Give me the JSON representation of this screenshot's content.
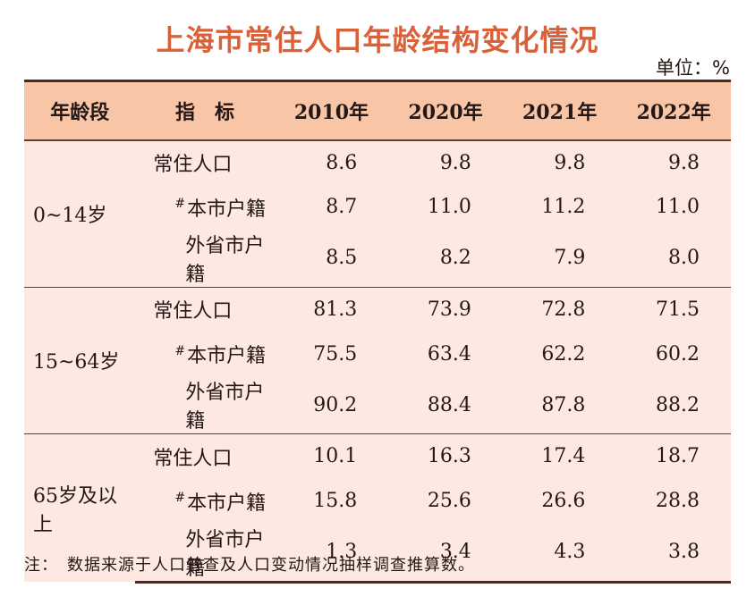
{
  "title": "上海市常住人口年龄结构变化情况",
  "unit": "单位：%",
  "headers": [
    "年龄段",
    "指　标",
    "2010年",
    "2020年",
    "2021年",
    "2022年"
  ],
  "groups": [
    {
      "age": "0~14岁",
      "rows": [
        {
          "mark": "",
          "label": "常住人口",
          "values": [
            "8.6",
            "9.8",
            "9.8",
            "9.8"
          ]
        },
        {
          "mark": "#",
          "label": "本市户籍",
          "values": [
            "8.7",
            "11.0",
            "11.2",
            "11.0"
          ]
        },
        {
          "mark": "",
          "label": "外省市户籍",
          "values": [
            "8.5",
            "8.2",
            "7.9",
            "8.0"
          ]
        }
      ]
    },
    {
      "age": "15~64岁",
      "rows": [
        {
          "mark": "",
          "label": "常住人口",
          "values": [
            "81.3",
            "73.9",
            "72.8",
            "71.5"
          ]
        },
        {
          "mark": "#",
          "label": "本市户籍",
          "values": [
            "75.5",
            "63.4",
            "62.2",
            "60.2"
          ]
        },
        {
          "mark": "",
          "label": "外省市户籍",
          "values": [
            "90.2",
            "88.4",
            "87.8",
            "88.2"
          ]
        }
      ]
    },
    {
      "age": "65岁及以上",
      "rows": [
        {
          "mark": "",
          "label": "常住人口",
          "values": [
            "10.1",
            "16.3",
            "17.4",
            "18.7"
          ]
        },
        {
          "mark": "#",
          "label": "本市户籍",
          "values": [
            "15.8",
            "25.6",
            "26.6",
            "28.8"
          ]
        },
        {
          "mark": "",
          "label": "外省市户籍",
          "values": [
            "1.3",
            "3.4",
            "4.3",
            "3.8"
          ]
        }
      ]
    }
  ],
  "note": "注：　数据来源于人口普查及人口变动情况抽样调查推算数。"
}
